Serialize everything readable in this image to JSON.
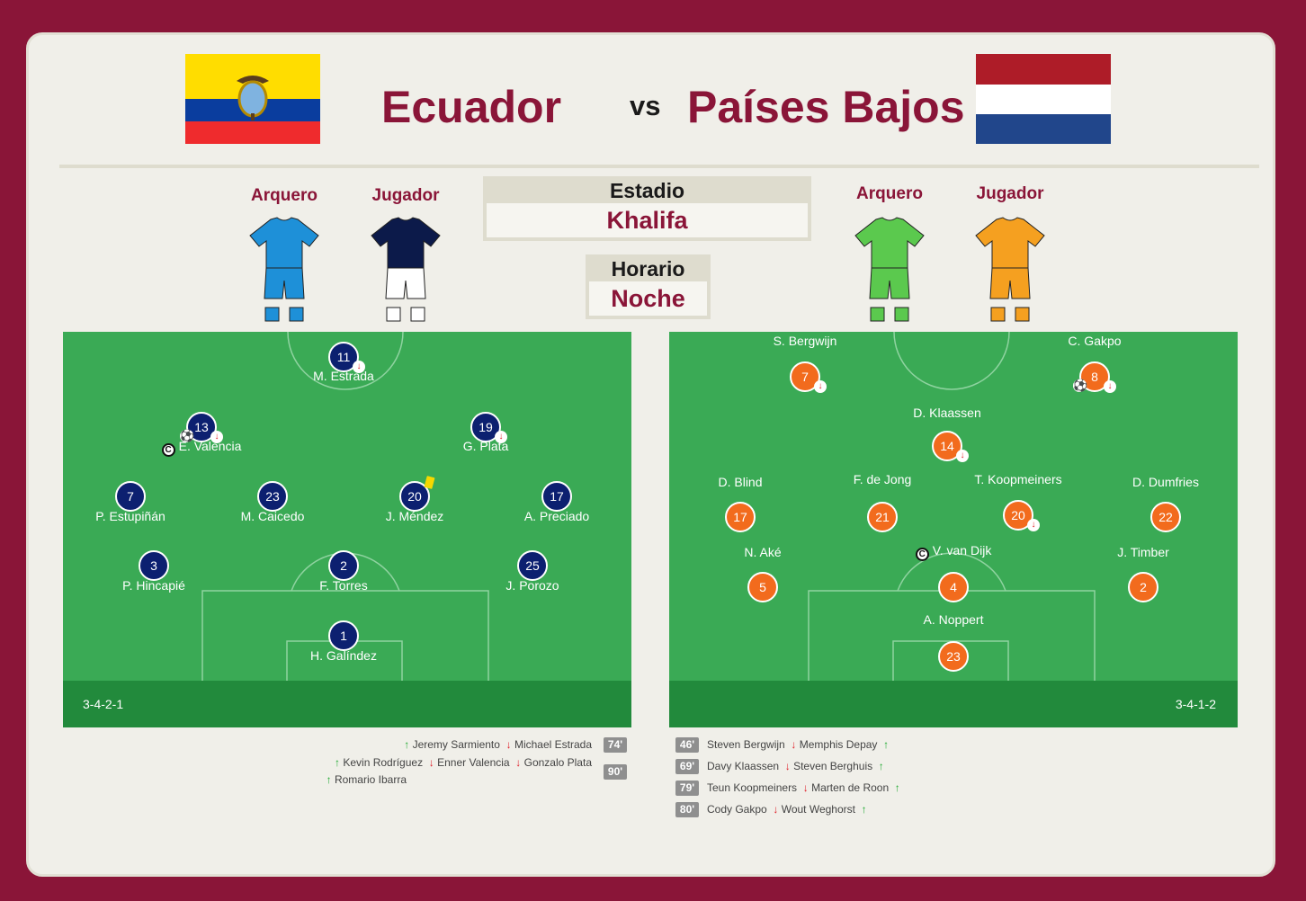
{
  "header": {
    "home_team": "Ecuador",
    "vs": "vs",
    "away_team": "Países Bajos",
    "home_flag": "flag-ecuador",
    "away_flag": "flag-netherlands"
  },
  "kits": {
    "home": {
      "gk_label": "Arquero",
      "player_label": "Jugador",
      "gk_color": "#1e90d8",
      "player_color": "#0c1a4a"
    },
    "away": {
      "gk_label": "Arquero",
      "player_label": "Jugador",
      "gk_color": "#5bc94e",
      "player_color": "#f5a020"
    }
  },
  "info": {
    "stadium_label": "Estadio",
    "stadium_value": "Khalifa",
    "time_label": "Horario",
    "time_value": "Noche"
  },
  "home": {
    "formation": "3-4-2-1",
    "color": "#0c2070",
    "players": [
      {
        "num": "11",
        "name": "M. Estrada",
        "out": true
      },
      {
        "num": "13",
        "name": "E. Valencia",
        "out": true,
        "goal": true,
        "captain": true
      },
      {
        "num": "19",
        "name": "G. Plata",
        "out": true
      },
      {
        "num": "7",
        "name": "P. Estupiñán"
      },
      {
        "num": "23",
        "name": "M. Caicedo"
      },
      {
        "num": "20",
        "name": "J. Méndez",
        "yellow": true
      },
      {
        "num": "17",
        "name": "A. Preciado"
      },
      {
        "num": "3",
        "name": "P. Hincapié"
      },
      {
        "num": "2",
        "name": "F. Torres"
      },
      {
        "num": "25",
        "name": "J. Porozo"
      },
      {
        "num": "1",
        "name": "H. Galíndez"
      }
    ],
    "subs": [
      {
        "minute": "74'",
        "items": [
          {
            "dir": "up",
            "name": "Jeremy Sarmiento"
          },
          {
            "dir": "down",
            "name": "Michael Estrada"
          }
        ]
      },
      {
        "minute": "90'",
        "items": [
          {
            "dir": "up",
            "name": "Kevin Rodríguez"
          },
          {
            "dir": "down",
            "name": "Enner Valencia"
          },
          {
            "dir": "down",
            "name": "Gonzalo Plata"
          }
        ]
      },
      {
        "minute": "",
        "items": [
          {
            "dir": "up",
            "name": "Romario Ibarra"
          }
        ]
      }
    ]
  },
  "away": {
    "formation": "3-4-1-2",
    "color": "#f26b1d",
    "players": [
      {
        "num": "7",
        "name": "S. Bergwijn",
        "out": true
      },
      {
        "num": "8",
        "name": "C. Gakpo",
        "out": true,
        "goal": true
      },
      {
        "num": "14",
        "name": "D. Klaassen",
        "out": true
      },
      {
        "num": "17",
        "name": "D. Blind"
      },
      {
        "num": "21",
        "name": "F. de Jong"
      },
      {
        "num": "20",
        "name": "T. Koopmeiners",
        "out": true
      },
      {
        "num": "22",
        "name": "D. Dumfries"
      },
      {
        "num": "5",
        "name": "N. Aké"
      },
      {
        "num": "4",
        "name": "V. van Dijk",
        "captain": true
      },
      {
        "num": "2",
        "name": "J. Timber"
      },
      {
        "num": "23",
        "name": "A. Noppert"
      }
    ],
    "subs": [
      {
        "minute": "46'",
        "out": "Steven Bergwijn",
        "in": "Memphis Depay"
      },
      {
        "minute": "69'",
        "out": "Davy Klaassen",
        "in": "Steven Berghuis"
      },
      {
        "minute": "79'",
        "out": "Teun Koopmeiners",
        "in": "Marten de Roon"
      },
      {
        "minute": "80'",
        "out": "Cody Gakpo",
        "in": "Wout Weghorst"
      }
    ]
  }
}
